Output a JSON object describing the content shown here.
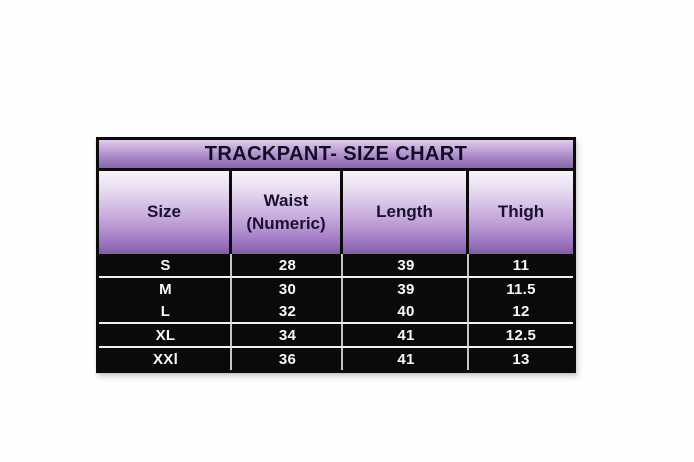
{
  "table": {
    "title": "TRACKPANT- SIZE CHART",
    "columns": [
      "Size",
      "Waist\n(Numeric)",
      "Length",
      "Thigh"
    ],
    "rows": [
      {
        "size": "S",
        "waist": "28",
        "length": "39",
        "thigh": "11"
      },
      {
        "size": "M",
        "waist": "30",
        "length": "39",
        "thigh": "11.5"
      },
      {
        "size": "L",
        "waist": "32",
        "length": "40",
        "thigh": "12"
      },
      {
        "size": "XL",
        "waist": "34",
        "length": "41",
        "thigh": "12.5"
      },
      {
        "size": "XXl",
        "waist": "36",
        "length": "41",
        "thigh": "13"
      }
    ],
    "colors": {
      "purple_light": "#e9ddf2",
      "purple_mid": "#a077c3",
      "purple_dark": "#7f5ea0",
      "data_background": "#0a0a0a",
      "data_text": "#fafafa",
      "border": "#0b0b0b"
    }
  },
  "chart_data": {
    "type": "table",
    "title": "TRACKPANT- SIZE CHART",
    "columns": [
      "Size",
      "Waist (Numeric)",
      "Length",
      "Thigh"
    ],
    "rows": [
      [
        "S",
        28,
        39,
        11
      ],
      [
        "M",
        30,
        39,
        11.5
      ],
      [
        "L",
        32,
        40,
        12
      ],
      [
        "XL",
        34,
        41,
        12.5
      ],
      [
        "XXl",
        36,
        41,
        13
      ]
    ]
  }
}
